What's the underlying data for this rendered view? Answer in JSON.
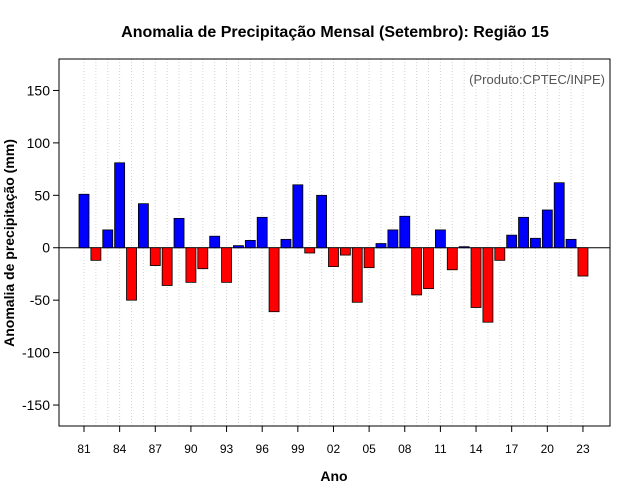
{
  "chart_data": {
    "type": "bar",
    "title": "Anomalia de Precipitação Mensal (Setembro): Região 15",
    "xlabel": "Ano",
    "ylabel": "Anomalia de precipitação (mm)",
    "annotation": "(Produto:CPTEC/INPE)",
    "ylim": [
      -170,
      180
    ],
    "yticks": [
      -150,
      -100,
      -50,
      0,
      50,
      100,
      150
    ],
    "xtick_labels": [
      "81",
      "84",
      "87",
      "90",
      "93",
      "96",
      "99",
      "02",
      "05",
      "08",
      "11",
      "14",
      "17",
      "20",
      "23"
    ],
    "categories": [
      "81",
      "82",
      "83",
      "84",
      "85",
      "86",
      "87",
      "88",
      "89",
      "90",
      "91",
      "92",
      "93",
      "94",
      "95",
      "96",
      "97",
      "98",
      "99",
      "00",
      "01",
      "02",
      "03",
      "04",
      "05",
      "06",
      "07",
      "08",
      "09",
      "10",
      "11",
      "12",
      "13",
      "14",
      "15",
      "16",
      "17",
      "18",
      "19",
      "20",
      "21",
      "22",
      "23"
    ],
    "values": [
      51,
      -12,
      17,
      81,
      -50,
      42,
      -17,
      -36,
      28,
      -33,
      -20,
      11,
      -33,
      2,
      7,
      29,
      -61,
      8,
      60,
      -5,
      50,
      -18,
      -7,
      -52,
      -19,
      4,
      17,
      30,
      -45,
      -39,
      17,
      -21,
      1,
      -57,
      -71,
      -12,
      12,
      29,
      9,
      36,
      62,
      8,
      -27
    ],
    "colors": {
      "positive": "#0000ff",
      "negative": "#ff0000",
      "bar_border": "#000000",
      "grid": "#d3d3d3"
    },
    "grid": true
  }
}
